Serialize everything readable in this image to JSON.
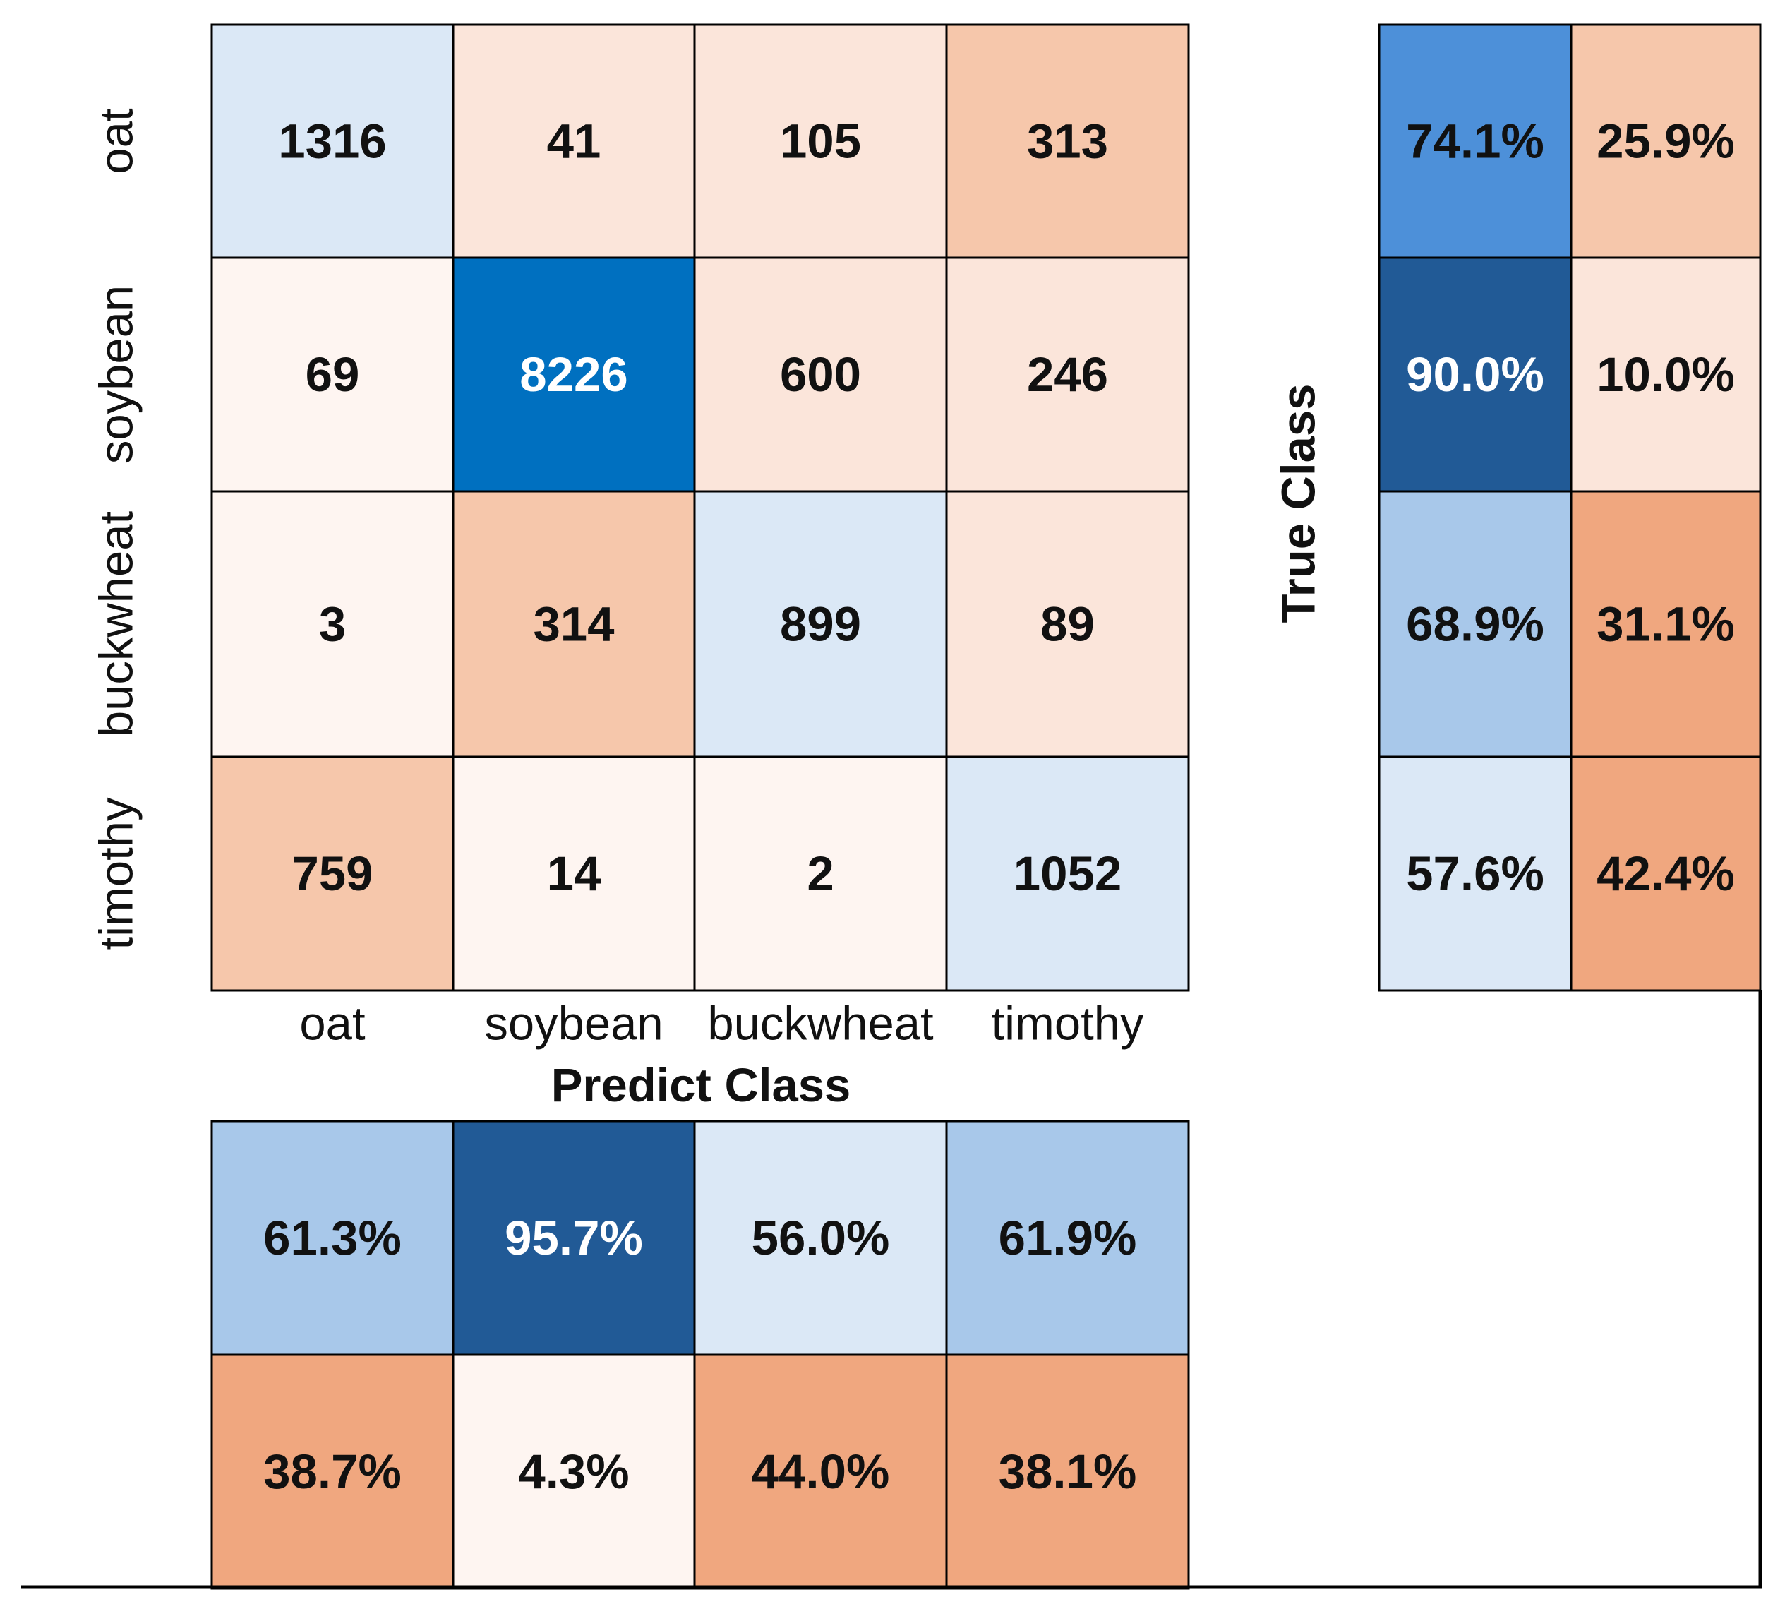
{
  "chart_data": {
    "type": "heatmap",
    "classes": [
      "oat",
      "soybean",
      "buckwheat",
      "timothy"
    ],
    "xlabel": "Predict Class",
    "ylabel": "True Class",
    "matrix": [
      [
        1316,
        41,
        105,
        313
      ],
      [
        69,
        8226,
        600,
        246
      ],
      [
        3,
        314,
        899,
        89
      ],
      [
        759,
        14,
        2,
        1052
      ]
    ],
    "row_summary": [
      [
        "74.1%",
        "25.9%"
      ],
      [
        "90.0%",
        "10.0%"
      ],
      [
        "68.9%",
        "31.1%"
      ],
      [
        "57.6%",
        "42.4%"
      ]
    ],
    "column_summary": [
      [
        "61.3%",
        "95.7%",
        "56.0%",
        "61.9%"
      ],
      [
        "38.7%",
        "4.3%",
        "44.0%",
        "38.1%"
      ]
    ],
    "colors": {
      "diagonal_strong": "#0070c0",
      "diagonal_light": "#dbe8f6",
      "offdiag_light": "#fbe5da",
      "offdiag_mid": "#f6c7ab",
      "offdiag_faint": "#fef5f1",
      "summary_blue_dark": "#215a96",
      "summary_blue_mid": "#4d90d9",
      "summary_blue_light": "#a8c8ea",
      "summary_salmon": "#f0a77f"
    }
  }
}
